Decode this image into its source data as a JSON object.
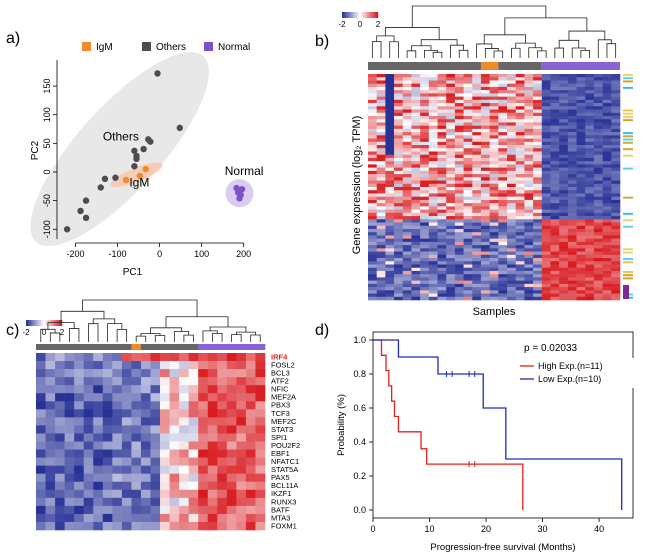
{
  "panel_labels": [
    "a)",
    "b)",
    "c)",
    "d)"
  ],
  "chart_data": [
    {
      "panel": "a",
      "type": "scatter",
      "xlabel": "PC1",
      "ylabel": "PC2",
      "xlim": [
        -225,
        215
      ],
      "ylim": [
        -110,
        185
      ],
      "xticks": [
        -200,
        -100,
        0,
        100,
        200
      ],
      "yticks": [
        -100,
        -50,
        0,
        50,
        100,
        150
      ],
      "legend_position": "top",
      "group_labels": [
        "Others",
        "IgM",
        "Normal"
      ],
      "series": [
        {
          "name": "IgM",
          "color": "#f08a2b",
          "points": [
            [
              -80,
              -14
            ],
            [
              -33,
              5
            ],
            [
              -47,
              -7
            ]
          ]
        },
        {
          "name": "Others",
          "color": "#4d4d4d",
          "points": [
            [
              -5,
              172
            ],
            [
              48,
              77
            ],
            [
              -27,
              57
            ],
            [
              -22,
              53
            ],
            [
              -38,
              40
            ],
            [
              -60,
              37
            ],
            [
              -55,
              28
            ],
            [
              -55,
              23
            ],
            [
              -60,
              10
            ],
            [
              -105,
              -10
            ],
            [
              -130,
              -12
            ],
            [
              -140,
              -27
            ],
            [
              -175,
              -50
            ],
            [
              -188,
              -68
            ],
            [
              -175,
              -80
            ],
            [
              -220,
              -100
            ]
          ]
        },
        {
          "name": "Normal",
          "color": "#7b52c7",
          "points": [
            [
              183,
              -28
            ],
            [
              193,
              -40
            ],
            [
              190,
              -46
            ],
            [
              187,
              -36
            ],
            [
              196,
              -30
            ]
          ]
        }
      ]
    },
    {
      "panel": "b",
      "type": "heatmap",
      "scale_ticks": [
        "-2",
        "0",
        "2"
      ],
      "ylabel": "Gene expression (log₂ TPM)",
      "xlabel": "Samples",
      "sample_groups": [
        {
          "name": "Others",
          "color": "#666666",
          "count": 13
        },
        {
          "name": "IgM",
          "color": "#f08a2b",
          "count": 2
        },
        {
          "name": "Others",
          "color": "#666666",
          "count": 5
        },
        {
          "name": "Normal",
          "color": "#8c63d6",
          "count": 9
        }
      ]
    },
    {
      "panel": "c",
      "type": "heatmap",
      "scale_ticks": [
        "-2",
        "0",
        "2"
      ],
      "genes": [
        "IRF4",
        "FOSL2",
        "BCL3",
        "ATF2",
        "NFIC",
        "MEF2A",
        "PBX3",
        "TCF3",
        "MEF2C",
        "STAT3",
        "SPI1",
        "POU2F2",
        "EBF1",
        "NFATC1",
        "STAT5A",
        "PAX5",
        "BCL11A",
        "IKZF1",
        "RUNX3",
        "BATF",
        "MTA3",
        "FOXM1"
      ],
      "highlight_gene": "IRF4",
      "highlight_color": "#e0221e"
    },
    {
      "panel": "d",
      "type": "line",
      "subtype": "kaplan-meier",
      "xlabel": "Progression-free survival (Months)",
      "ylabel": "Probability (%)",
      "xlim": [
        0,
        46
      ],
      "ylim": [
        0,
        1.0
      ],
      "xticks": [
        0,
        10,
        20,
        30,
        40
      ],
      "yticks": [
        0.0,
        0.2,
        0.4,
        0.6,
        0.8,
        1.0
      ],
      "pvalue": "p = 0.02033",
      "legend_position": "top-right",
      "series": [
        {
          "name": "High Exp.(n=11)",
          "color": "#e0221e",
          "steps": [
            [
              0,
              1.0
            ],
            [
              1.5,
              0.91
            ],
            [
              2.3,
              0.82
            ],
            [
              2.8,
              0.73
            ],
            [
              3.3,
              0.64
            ],
            [
              3.8,
              0.55
            ],
            [
              4.5,
              0.46
            ],
            [
              8.5,
              0.36
            ],
            [
              9.5,
              0.27
            ],
            [
              26.5,
              0.0
            ]
          ],
          "censored": [
            [
              17,
              0.27
            ],
            [
              18,
              0.27
            ]
          ]
        },
        {
          "name": "Low Exp.(n=10)",
          "color": "#1e2bb8",
          "steps": [
            [
              0,
              1.0
            ],
            [
              4.5,
              0.9
            ],
            [
              11.5,
              0.8
            ],
            [
              19.5,
              0.6
            ],
            [
              23.5,
              0.3
            ],
            [
              44,
              0.0
            ]
          ],
          "censored": [
            [
              13,
              0.8
            ],
            [
              14,
              0.8
            ],
            [
              17,
              0.8
            ],
            [
              18,
              0.8
            ]
          ]
        }
      ]
    }
  ]
}
